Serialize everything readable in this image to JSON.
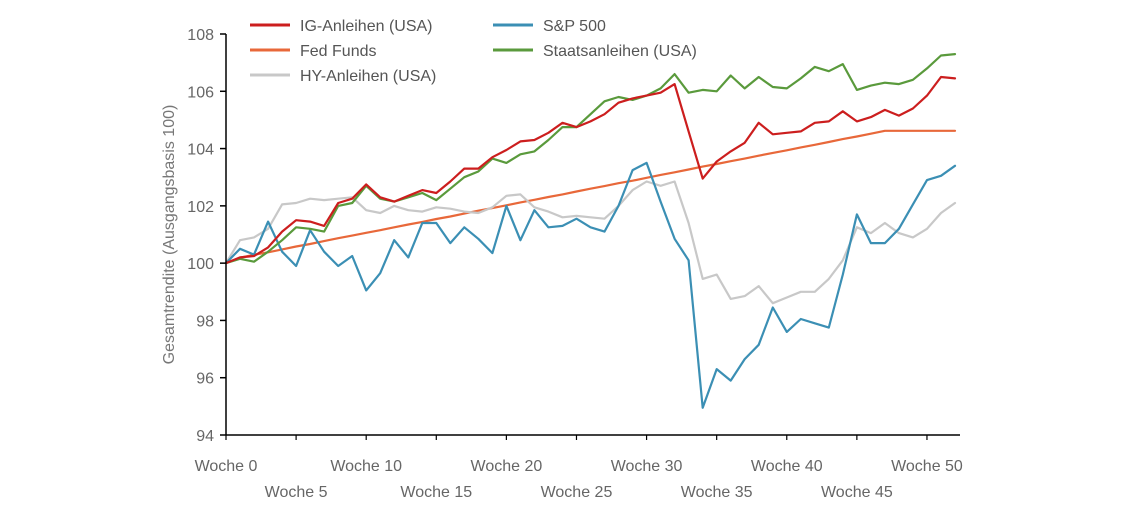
{
  "chart_data": {
    "type": "line",
    "title": "",
    "xlabel": "",
    "ylabel": "Gesamtrendite (Ausgangsbasis 100)",
    "ylim": [
      94,
      108
    ],
    "yticks": [
      94,
      96,
      98,
      100,
      102,
      104,
      106,
      108
    ],
    "x": [
      0,
      1,
      2,
      3,
      4,
      5,
      6,
      7,
      8,
      9,
      10,
      11,
      12,
      13,
      14,
      15,
      16,
      17,
      18,
      19,
      20,
      21,
      22,
      23,
      24,
      25,
      26,
      27,
      28,
      29,
      30,
      31,
      32,
      33,
      34,
      35,
      36,
      37,
      38,
      39,
      40,
      41,
      42,
      43,
      44,
      45,
      46,
      47,
      48,
      49,
      50,
      51,
      52
    ],
    "xticks": [
      {
        "x": 0,
        "label": "Woche 0"
      },
      {
        "x": 5,
        "label": "Woche 5"
      },
      {
        "x": 10,
        "label": "Woche 10"
      },
      {
        "x": 15,
        "label": "Woche 15"
      },
      {
        "x": 20,
        "label": "Woche 20"
      },
      {
        "x": 25,
        "label": "Woche 25"
      },
      {
        "x": 30,
        "label": "Woche 30"
      },
      {
        "x": 35,
        "label": "Woche 35"
      },
      {
        "x": 40,
        "label": "Woche 40"
      },
      {
        "x": 45,
        "label": "Woche 45"
      },
      {
        "x": 50,
        "label": "Woche 50"
      }
    ],
    "grid": false,
    "legend_position": "top",
    "series": [
      {
        "name": "Fed Funds",
        "color": "#e8683a",
        "values": [
          100.0,
          100.19,
          100.29,
          100.38,
          100.48,
          100.58,
          100.67,
          100.77,
          100.87,
          100.96,
          101.06,
          101.15,
          101.25,
          101.35,
          101.44,
          101.54,
          101.63,
          101.73,
          101.83,
          101.92,
          102.02,
          102.12,
          102.21,
          102.31,
          102.4,
          102.5,
          102.6,
          102.69,
          102.79,
          102.88,
          102.98,
          103.08,
          103.17,
          103.27,
          103.37,
          103.46,
          103.56,
          103.65,
          103.75,
          103.85,
          103.94,
          104.04,
          104.13,
          104.23,
          104.33,
          104.42,
          104.52,
          104.62,
          104.62,
          104.62,
          104.62,
          104.62,
          104.62
        ]
      },
      {
        "name": "HY-Anleihen (USA)",
        "color": "#c8c8c8",
        "values": [
          100.0,
          100.8,
          100.9,
          101.2,
          102.05,
          102.1,
          102.25,
          102.2,
          102.25,
          102.3,
          101.85,
          101.75,
          102.0,
          101.85,
          101.8,
          101.95,
          101.9,
          101.8,
          101.75,
          101.95,
          102.35,
          102.4,
          101.95,
          101.8,
          101.6,
          101.65,
          101.6,
          101.55,
          102.0,
          102.55,
          102.85,
          102.7,
          102.85,
          101.4,
          99.45,
          99.6,
          98.75,
          98.85,
          99.2,
          98.6,
          98.8,
          99.0,
          99.0,
          99.45,
          100.1,
          101.25,
          101.05,
          101.4,
          101.05,
          100.9,
          101.2,
          101.75,
          102.1
        ]
      },
      {
        "name": "S&P 500",
        "color": "#3b8fb4",
        "values": [
          100.0,
          100.5,
          100.3,
          101.45,
          100.4,
          99.9,
          101.15,
          100.4,
          99.9,
          100.25,
          99.05,
          99.65,
          100.8,
          100.2,
          101.4,
          101.4,
          100.7,
          101.25,
          100.85,
          100.35,
          102.0,
          100.8,
          101.85,
          101.25,
          101.3,
          101.55,
          101.25,
          101.1,
          102.0,
          103.25,
          103.5,
          102.15,
          100.85,
          100.1,
          94.95,
          96.3,
          95.9,
          96.65,
          97.15,
          98.45,
          97.6,
          98.05,
          97.9,
          97.75,
          99.6,
          101.7,
          100.7,
          100.7,
          101.2,
          102.05,
          102.9,
          103.05,
          103.4
        ]
      },
      {
        "name": "Staatsanleihen (USA)",
        "color": "#5a9a3c",
        "values": [
          100.0,
          100.15,
          100.05,
          100.4,
          100.8,
          101.25,
          101.2,
          101.1,
          102.0,
          102.1,
          102.7,
          102.25,
          102.15,
          102.3,
          102.45,
          102.2,
          102.6,
          103.0,
          103.2,
          103.65,
          103.5,
          103.8,
          103.9,
          104.3,
          104.75,
          104.75,
          105.2,
          105.65,
          105.8,
          105.7,
          105.85,
          106.1,
          106.6,
          105.95,
          106.05,
          106.0,
          106.55,
          106.1,
          106.5,
          106.15,
          106.1,
          106.45,
          106.85,
          106.7,
          106.95,
          106.05,
          106.2,
          106.3,
          106.25,
          106.4,
          106.8,
          107.25,
          107.3
        ]
      },
      {
        "name": "IG-Anleihen (USA)",
        "color": "#cc1e1e",
        "values": [
          100.0,
          100.2,
          100.25,
          100.55,
          101.1,
          101.5,
          101.45,
          101.3,
          102.1,
          102.25,
          102.75,
          102.3,
          102.15,
          102.35,
          102.55,
          102.45,
          102.85,
          103.3,
          103.3,
          103.7,
          103.95,
          104.25,
          104.3,
          104.55,
          104.9,
          104.75,
          104.95,
          105.2,
          105.6,
          105.75,
          105.85,
          105.95,
          106.25,
          104.6,
          102.95,
          103.55,
          103.9,
          104.2,
          104.9,
          104.5,
          104.55,
          104.6,
          104.9,
          104.95,
          105.3,
          104.95,
          105.1,
          105.35,
          105.15,
          105.4,
          105.85,
          106.5,
          106.45
        ]
      }
    ],
    "legend": [
      {
        "name": "IG-Anleihen (USA)",
        "color": "#cc1e1e"
      },
      {
        "name": "S&P 500",
        "color": "#3b8fb4"
      },
      {
        "name": "Fed Funds",
        "color": "#e8683a"
      },
      {
        "name": "Staatsanleihen (USA)",
        "color": "#5a9a3c"
      },
      {
        "name": "HY-Anleihen (USA)",
        "color": "#c8c8c8"
      }
    ]
  }
}
